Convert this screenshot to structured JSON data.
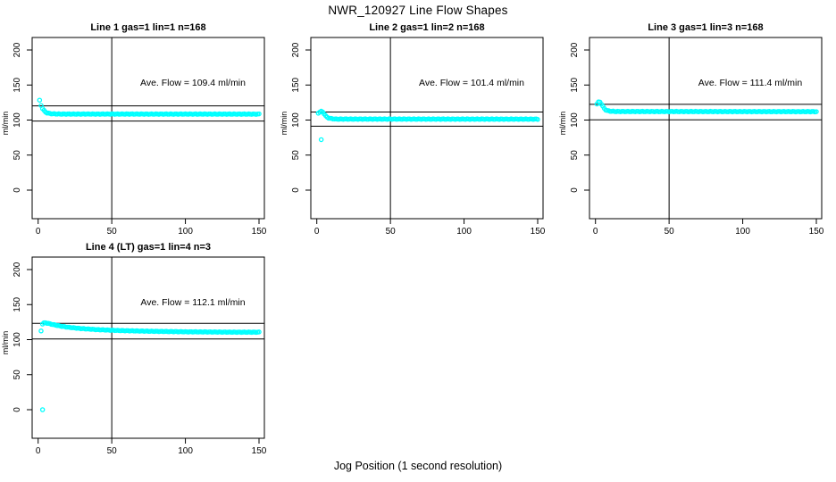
{
  "page_title": "NWR_120927  Line Flow Shapes",
  "xlabel": "Jog Position (1 second resolution)",
  "ylabel": "ml/min",
  "marker_color": "#00ffff",
  "axis_color": "#000000",
  "axes": {
    "x_ticks": [
      0,
      50,
      100,
      150
    ],
    "y_ticks": [
      0,
      50,
      100,
      150,
      200
    ],
    "xlim": [
      -4,
      154
    ],
    "ylim": [
      -41,
      218
    ]
  },
  "chart_data": [
    {
      "type": "scatter",
      "title": "Line 1 gas=1 lin=1 n=168",
      "annotation": "Ave. Flow =  109.4  ml/min",
      "ave_flow": 109.4,
      "n": 168,
      "vline_x": 50,
      "ref_lines": [
        98.5,
        120.3
      ],
      "jitter": 0.4,
      "anchors": [
        [
          1,
          128
        ],
        [
          2,
          121
        ],
        [
          3,
          116.5
        ],
        [
          4,
          113.5
        ],
        [
          5,
          111.5
        ],
        [
          6,
          110.3
        ],
        [
          8,
          109.3
        ],
        [
          10,
          108.9
        ],
        [
          14,
          108.6
        ],
        [
          150,
          108.5
        ]
      ],
      "outliers": []
    },
    {
      "type": "scatter",
      "title": "Line 2 gas=1 lin=2 n=168",
      "annotation": "Ave. Flow =  101.4  ml/min",
      "ave_flow": 101.4,
      "n": 168,
      "vline_x": 50,
      "ref_lines": [
        91.3,
        111.5
      ],
      "jitter": 0.4,
      "anchors": [
        [
          1,
          110
        ],
        [
          2,
          111.5
        ],
        [
          3,
          112.3
        ],
        [
          4,
          111.5
        ],
        [
          5,
          109
        ],
        [
          6,
          106
        ],
        [
          7,
          104
        ],
        [
          8,
          103
        ],
        [
          10,
          102
        ],
        [
          13,
          101.4
        ],
        [
          150,
          101.3
        ]
      ],
      "outliers": [
        [
          3,
          72
        ]
      ]
    },
    {
      "type": "scatter",
      "title": "Line 3 gas=1 lin=3 n=168",
      "annotation": "Ave. Flow =  111.4  ml/min",
      "ave_flow": 111.4,
      "n": 168,
      "vline_x": 50,
      "ref_lines": [
        100.3,
        122.5
      ],
      "jitter": 0.4,
      "anchors": [
        [
          1,
          123
        ],
        [
          2,
          125.5
        ],
        [
          3,
          125.8
        ],
        [
          4,
          123
        ],
        [
          5,
          119.5
        ],
        [
          6,
          116.5
        ],
        [
          7,
          114.5
        ],
        [
          8,
          113.5
        ],
        [
          10,
          112.7
        ],
        [
          14,
          112.2
        ],
        [
          150,
          112
        ]
      ],
      "outliers": []
    },
    {
      "type": "scatter",
      "title": "Line 4 (LT) gas=1 lin=4 n=3",
      "annotation": "Ave. Flow =  112.1  ml/min",
      "ave_flow": 112.1,
      "n": 3,
      "vline_x": 50,
      "ref_lines": [
        100.9,
        123.3
      ],
      "jitter": 0.35,
      "anchors": [
        [
          2,
          112.5
        ],
        [
          3,
          122.5
        ],
        [
          4,
          123.8
        ],
        [
          5,
          124
        ],
        [
          6,
          123.6
        ],
        [
          8,
          122.6
        ],
        [
          10,
          121.6
        ],
        [
          14,
          119.8
        ],
        [
          20,
          117.8
        ],
        [
          28,
          116
        ],
        [
          40,
          114.3
        ],
        [
          55,
          113
        ],
        [
          75,
          112
        ],
        [
          100,
          111.2
        ],
        [
          130,
          110.7
        ],
        [
          150,
          110.6
        ]
      ],
      "outliers": [
        [
          3,
          0
        ]
      ]
    }
  ]
}
